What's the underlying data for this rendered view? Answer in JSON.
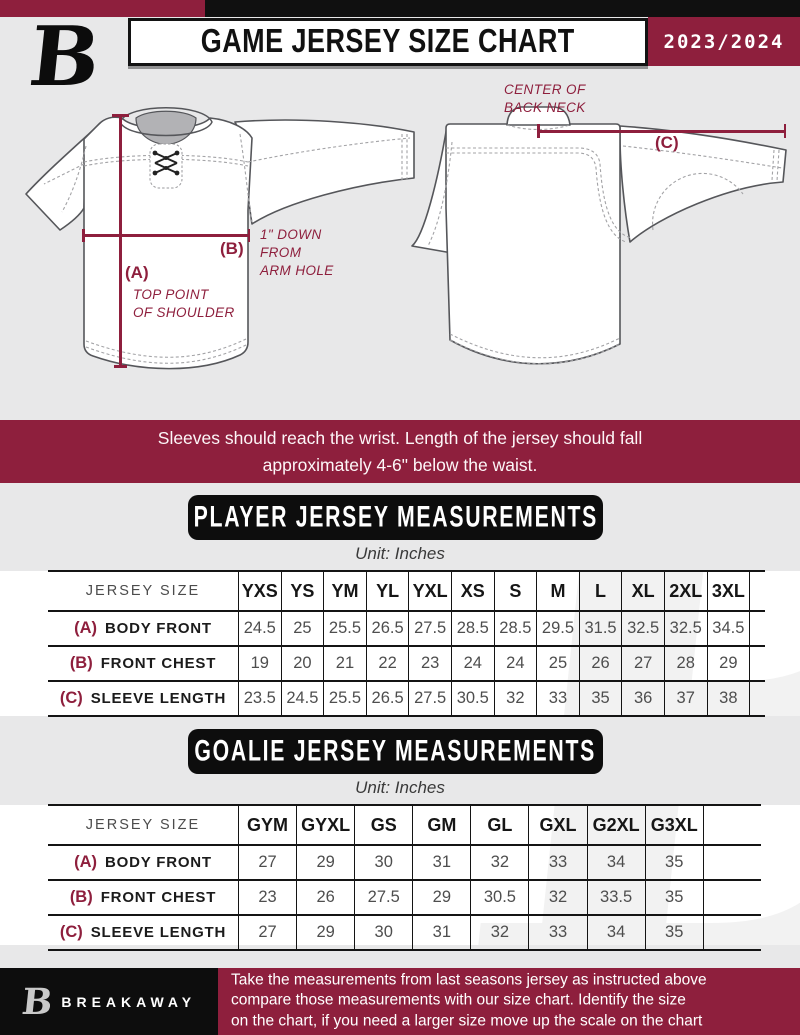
{
  "header": {
    "logo": "B",
    "title": "GAME JERSEY SIZE CHART",
    "season": "2023/2024"
  },
  "diagram": {
    "front": {
      "a_key": "(A)",
      "a_lines": [
        "TOP POINT",
        "OF SHOULDER"
      ],
      "b_key": "(B)",
      "b_lines": [
        "1\" DOWN",
        "FROM",
        "ARM HOLE"
      ]
    },
    "back": {
      "c_key": "(C)",
      "neck_lines": [
        "CENTER OF",
        "BACK NECK"
      ]
    }
  },
  "notice_lines": [
    "Sleeves should reach the wrist. Length of the jersey should fall",
    "approximately 4-6\" below the waist."
  ],
  "player_table": {
    "title": "PLAYER JERSEY MEASUREMENTS",
    "unit": "Unit: Inches",
    "header_label": "JERSEY SIZE",
    "sizes": [
      "YXS",
      "YS",
      "YM",
      "YL",
      "YXL",
      "XS",
      "S",
      "M",
      "L",
      "XL",
      "2XL",
      "3XL"
    ],
    "rows": [
      {
        "key": "(A)",
        "label": "BODY FRONT",
        "values": [
          "24.5",
          "25",
          "25.5",
          "26.5",
          "27.5",
          "28.5",
          "28.5",
          "29.5",
          "31.5",
          "32.5",
          "32.5",
          "34.5"
        ]
      },
      {
        "key": "(B)",
        "label": "FRONT CHEST",
        "values": [
          "19",
          "20",
          "21",
          "22",
          "23",
          "24",
          "24",
          "25",
          "26",
          "27",
          "28",
          "29"
        ]
      },
      {
        "key": "(C)",
        "label": "SLEEVE LENGTH",
        "values": [
          "23.5",
          "24.5",
          "25.5",
          "26.5",
          "27.5",
          "30.5",
          "32",
          "33",
          "35",
          "36",
          "37",
          "38"
        ]
      }
    ],
    "extra_empty_column": true
  },
  "goalie_table": {
    "title": "GOALIE JERSEY MEASUREMENTS",
    "unit": "Unit: Inches",
    "header_label": "JERSEY SIZE",
    "sizes": [
      "GYM",
      "GYXL",
      "GS",
      "GM",
      "GL",
      "GXL",
      "G2XL",
      "G3XL"
    ],
    "rows": [
      {
        "key": "(A)",
        "label": "BODY FRONT",
        "values": [
          "27",
          "29",
          "30",
          "31",
          "32",
          "33",
          "34",
          "35"
        ]
      },
      {
        "key": "(B)",
        "label": "FRONT CHEST",
        "values": [
          "23",
          "26",
          "27.5",
          "29",
          "30.5",
          "32",
          "33.5",
          "35"
        ]
      },
      {
        "key": "(C)",
        "label": "SLEEVE LENGTH",
        "values": [
          "27",
          "29",
          "30",
          "31",
          "32",
          "33",
          "34",
          "35"
        ]
      }
    ],
    "extra_empty_column": true
  },
  "footer": {
    "logo": "B",
    "brand": "BREAKAWAY",
    "lines": [
      "Take the measurements from last seasons jersey as instructed above",
      "compare those measurements  with our size chart. Identify the size",
      "on the chart, if you need a larger size move up the scale on the chart"
    ]
  },
  "colors": {
    "maroon": "#8e1f3d",
    "black": "#101010",
    "light_gray": "#e8e8e9"
  }
}
